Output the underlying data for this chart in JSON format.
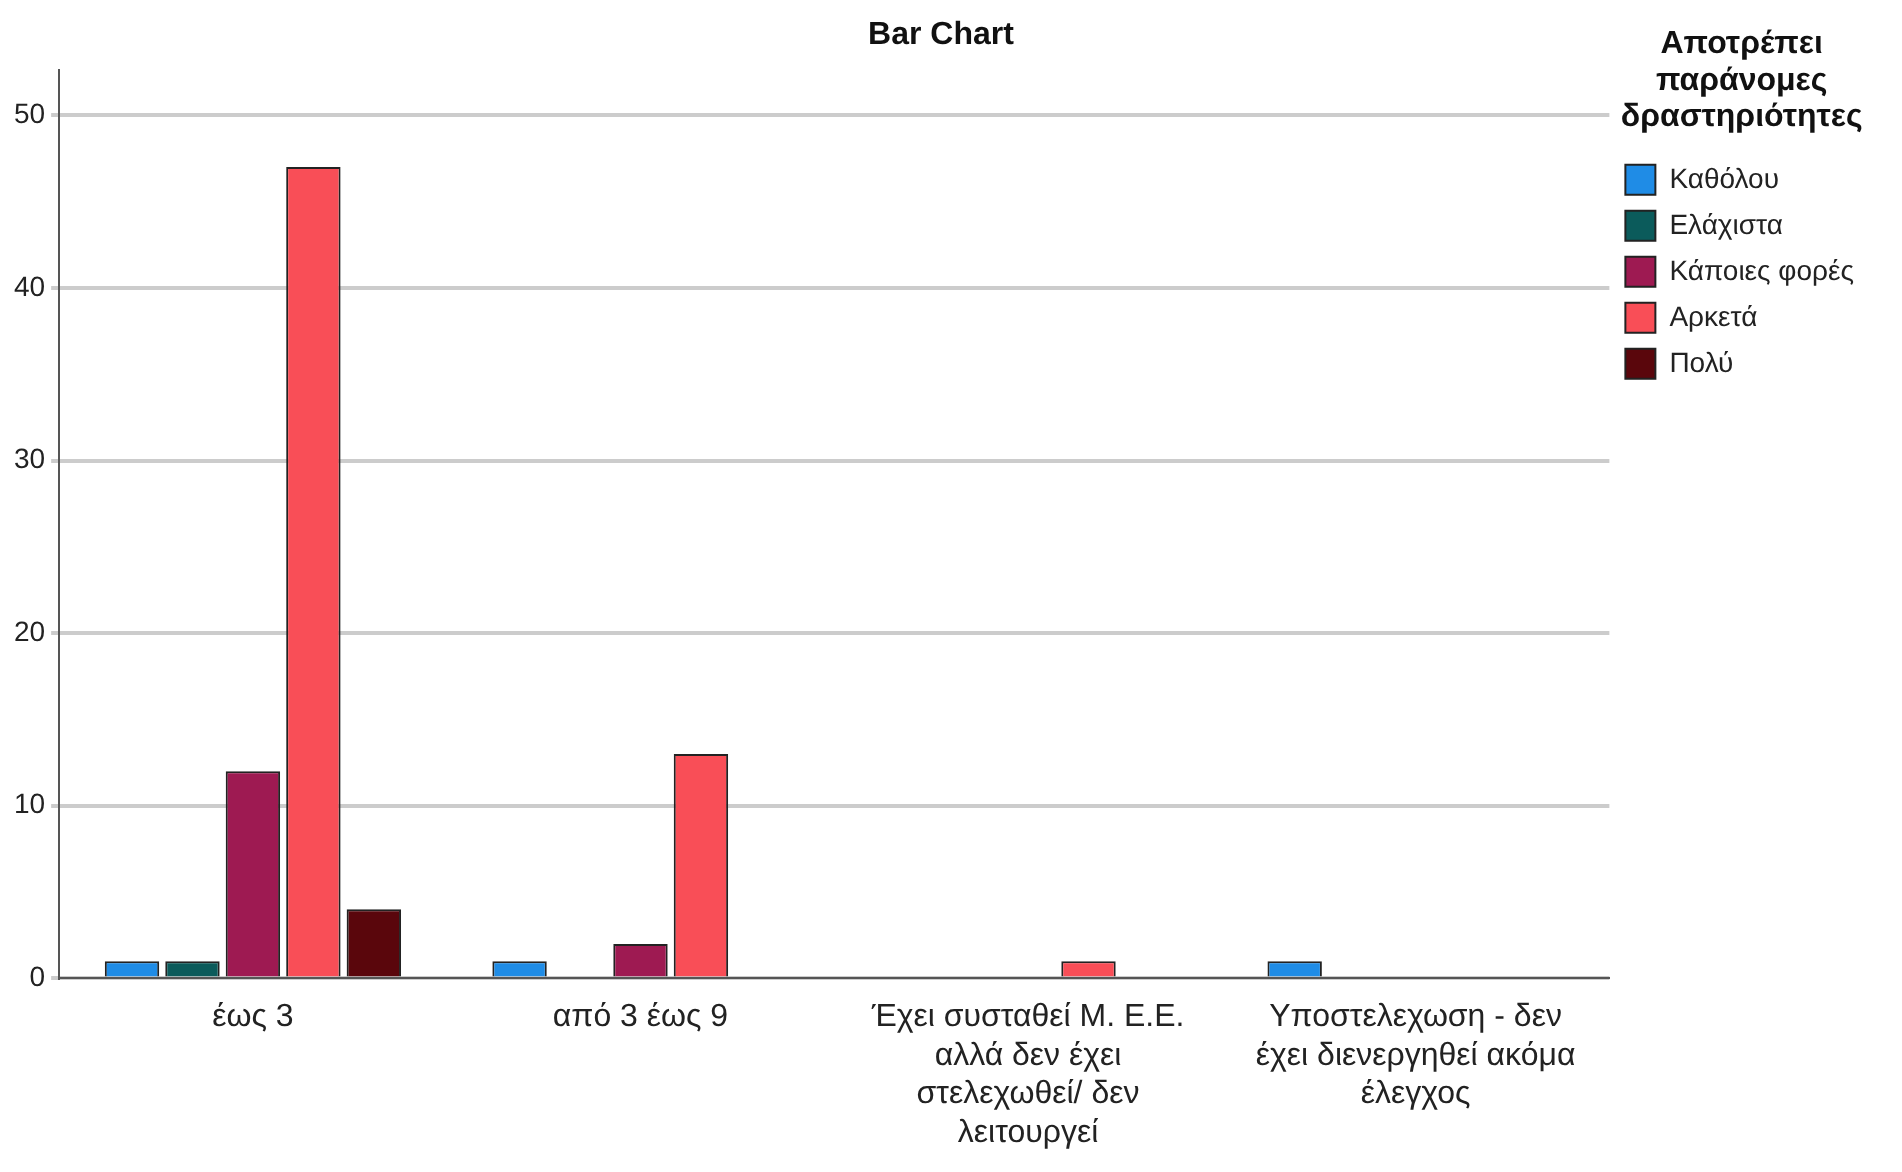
{
  "chart_data": {
    "type": "bar",
    "title": "Bar Chart",
    "legend_title": "Αποτρέπει παράνομες δραστηριότητες",
    "categories": [
      "έως 3",
      "από 3 έως 9",
      "Έχει συσταθεί Μ. Ε.Ε. αλλά δεν έχει στελεχωθεί/ δεν λειτουργεί",
      "Υποστελεχωση - δεν έχει διενεργηθεί ακόμα έλεγχος"
    ],
    "series": [
      {
        "name": "Καθόλου",
        "color": "#1f8ce6",
        "values": [
          1,
          1,
          null,
          1
        ]
      },
      {
        "name": "Ελάχιστα",
        "color": "#0b5b5b",
        "values": [
          1,
          null,
          null,
          null
        ]
      },
      {
        "name": "Κάποιες φορές",
        "color": "#9e1a52",
        "values": [
          12,
          2,
          null,
          null
        ]
      },
      {
        "name": "Αρκετά",
        "color": "#f94e57",
        "values": [
          47,
          13,
          1,
          null
        ]
      },
      {
        "name": "Πολύ",
        "color": "#5a060c",
        "values": [
          4,
          null,
          null,
          null
        ]
      }
    ],
    "ylim": [
      0,
      52.6
    ],
    "yticks": [
      0,
      10,
      20,
      30,
      40,
      50
    ],
    "grid": "y",
    "legend": "right"
  }
}
